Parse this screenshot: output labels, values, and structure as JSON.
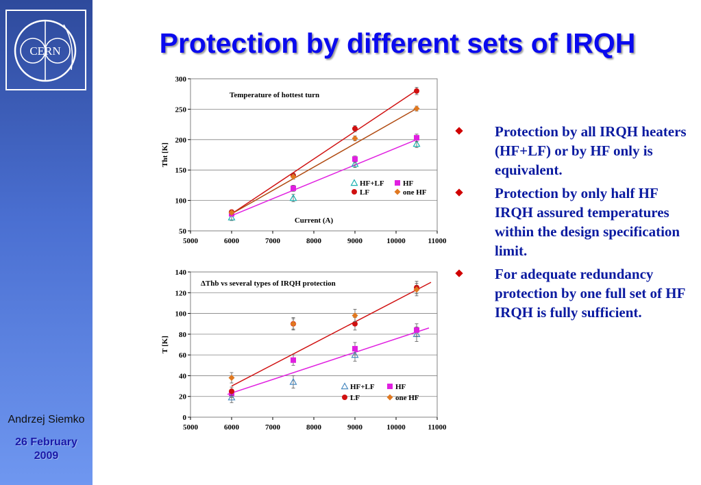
{
  "sidebar": {
    "logo_text": "CERN",
    "author": "Andrzej Siemko",
    "date_line1": "26 February",
    "date_line2": "2009"
  },
  "title": "Protection by different sets of IRQH",
  "bullets": [
    "Protection by all IRQH heaters (HF+LF) or by HF only is equivalent.",
    "Protection by only half HF IRQH assured temperatures within the design specification limit.",
    "For adequate redundancy protection by one full  set of HF IRQH is fully sufficient."
  ],
  "colors": {
    "title": "#0a0aee",
    "bullet_text": "#0a1aa0",
    "bullet_marker": "#d00000",
    "hf_lf": "#1bb0b0",
    "hf": "#e020e0",
    "lf": "#d01010",
    "one_hf": "#e07820"
  },
  "chart_data": [
    {
      "type": "scatter",
      "annotation": "Temperature  of  hottest turn",
      "xlabel": "Current (A)",
      "ylabel": "Tht [K]",
      "xlim": [
        5000,
        11000
      ],
      "ylim": [
        50,
        300
      ],
      "xticks": [
        5000,
        6000,
        7000,
        8000,
        9000,
        10000,
        11000
      ],
      "yticks": [
        50,
        100,
        150,
        200,
        250,
        300
      ],
      "grid": "horizontal",
      "legend": "center-right",
      "series": [
        {
          "name": "HF+LF",
          "marker": "triangle",
          "color": "#1bb0b0",
          "x": [
            6000,
            7500,
            9000,
            10500
          ],
          "y": [
            72,
            104,
            160,
            193
          ],
          "err": [
            5,
            6,
            6,
            6
          ]
        },
        {
          "name": "HF",
          "marker": "square",
          "color": "#e020e0",
          "x": [
            6000,
            7500,
            9000,
            10500
          ],
          "y": [
            78,
            120,
            168,
            203
          ],
          "err": [
            4,
            5,
            5,
            6
          ]
        },
        {
          "name": "LF",
          "marker": "circle",
          "color": "#d01010",
          "x": [
            6000,
            7500,
            9000,
            10500
          ],
          "y": [
            81,
            141,
            218,
            280
          ],
          "err": [
            3,
            4,
            5,
            6
          ]
        },
        {
          "name": "one HF",
          "marker": "diamond",
          "color": "#e07820",
          "x": [
            6000,
            7500,
            9000,
            10500
          ],
          "y": [
            80,
            139,
            202,
            251
          ],
          "err": [
            3,
            4,
            4,
            4
          ]
        }
      ],
      "fit_lines": [
        {
          "color": "#d01010",
          "from": [
            6000,
            78
          ],
          "to": [
            10500,
            281
          ]
        },
        {
          "color": "#b04a10",
          "from": [
            6000,
            78
          ],
          "to": [
            10500,
            251
          ]
        },
        {
          "color": "#e020e0",
          "from": [
            6000,
            75
          ],
          "to": [
            10500,
            200
          ]
        }
      ]
    },
    {
      "type": "scatter",
      "annotation": "ΔThb  vs several types of  IRQH protection",
      "xlabel": "",
      "ylabel": "T [K]",
      "xlim": [
        5000,
        11000
      ],
      "ylim": [
        0,
        140
      ],
      "xticks": [
        5000,
        6000,
        7000,
        8000,
        9000,
        10000,
        11000
      ],
      "yticks": [
        0,
        20,
        40,
        60,
        80,
        100,
        120,
        140
      ],
      "grid": "horizontal",
      "legend": "bottom-right",
      "series": [
        {
          "name": "HF+LF",
          "marker": "triangle",
          "color": "#4a8ac0",
          "x": [
            6000,
            7500,
            9000,
            10500
          ],
          "y": [
            19,
            34,
            60,
            80
          ],
          "err": [
            5,
            6,
            6,
            7
          ]
        },
        {
          "name": "HF",
          "marker": "square",
          "color": "#e020e0",
          "x": [
            6000,
            7500,
            9000,
            10500
          ],
          "y": [
            23,
            55,
            66,
            84
          ],
          "err": [
            4,
            5,
            6,
            6
          ]
        },
        {
          "name": "LF",
          "marker": "circle",
          "color": "#d01010",
          "x": [
            6000,
            7500,
            9000,
            10500
          ],
          "y": [
            25,
            90,
            90,
            125
          ],
          "err": [
            4,
            6,
            6,
            6
          ]
        },
        {
          "name": "one HF",
          "marker": "diamond",
          "color": "#e07820",
          "x": [
            6000,
            7500,
            9000,
            10500
          ],
          "y": [
            38,
            90,
            98,
            123
          ],
          "err": [
            5,
            5,
            6,
            6
          ]
        }
      ],
      "fit_lines": [
        {
          "color": "#d01010",
          "from": [
            6000,
            30
          ],
          "to": [
            10850,
            130
          ]
        },
        {
          "color": "#e020e0",
          "from": [
            5900,
            22
          ],
          "to": [
            10800,
            86
          ]
        }
      ]
    }
  ]
}
